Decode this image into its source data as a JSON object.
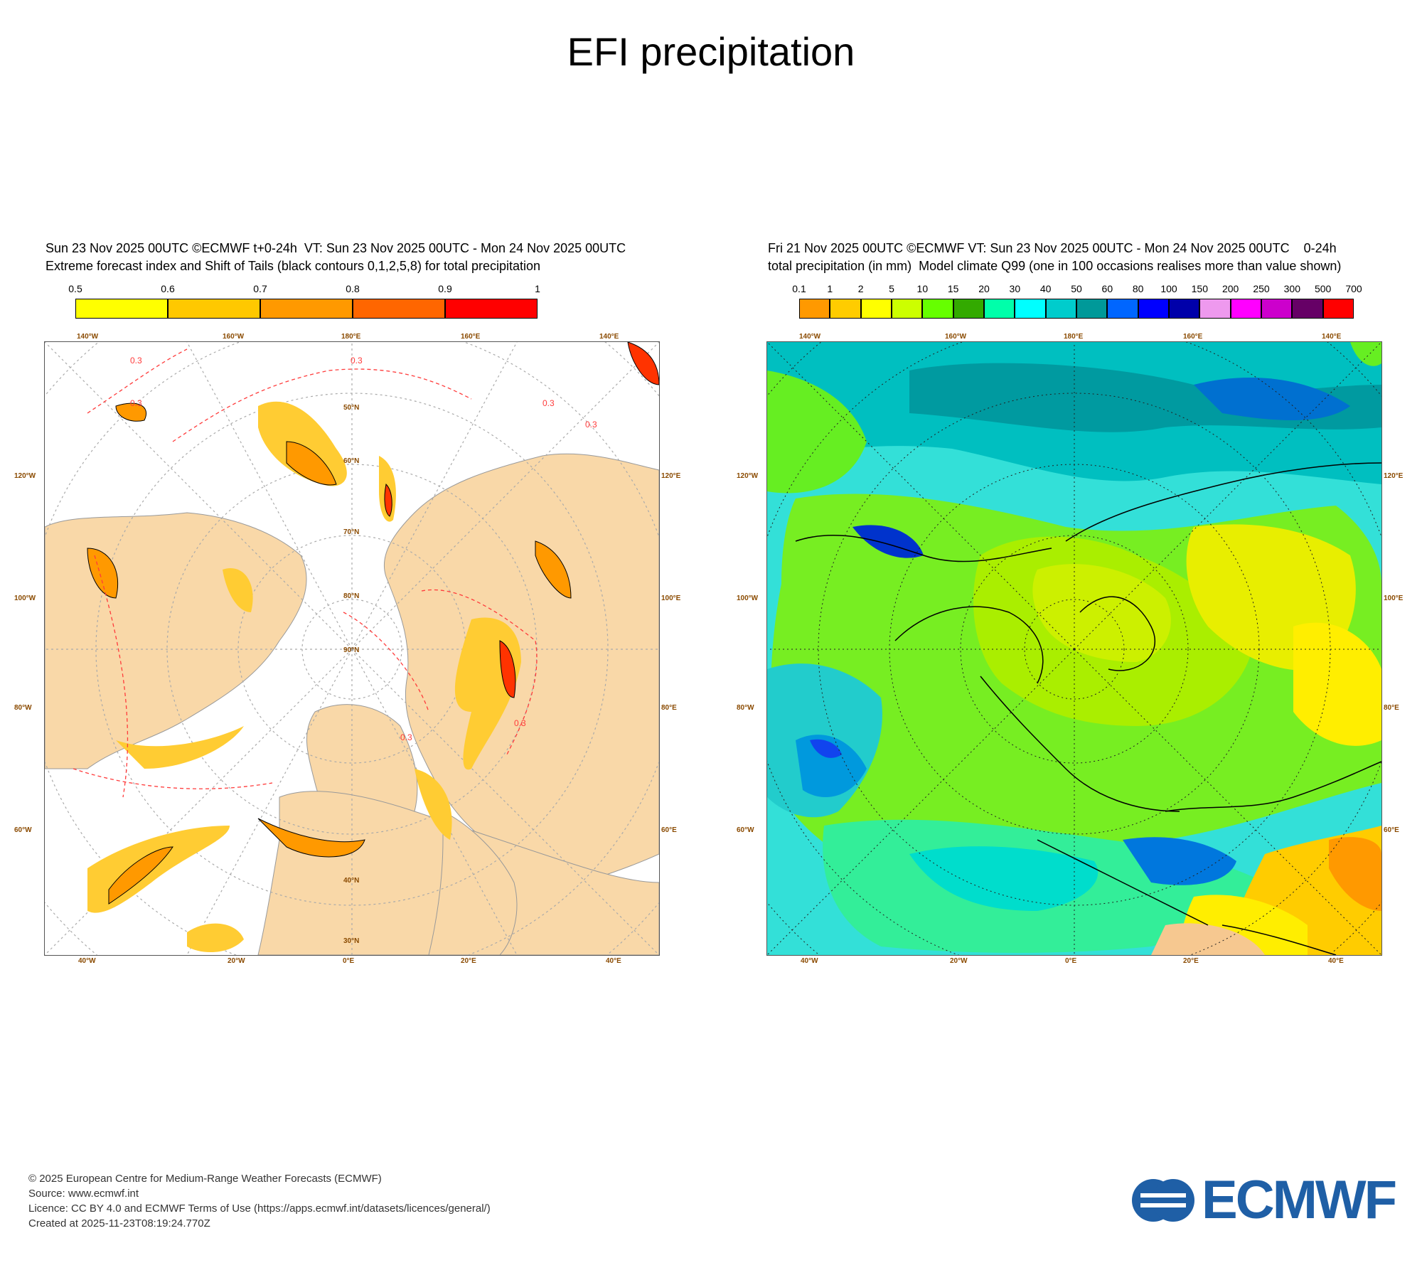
{
  "title": "EFI precipitation",
  "left_panel": {
    "header_line1": "Sun 23 Nov 2025 00UTC ©ECMWF t+0-24h  VT: Sun 23 Nov 2025 00UTC - Mon 24 Nov 2025 00UTC",
    "header_line2": "Extreme forecast index and Shift of Tails (black contours 0,1,2,5,8) for total precipitation",
    "colorbar": {
      "labels": [
        "0.5",
        "0.6",
        "0.7",
        "0.8",
        "0.9",
        "1"
      ],
      "colors": [
        "#ffff00",
        "#ffc800",
        "#ff9900",
        "#ff6600",
        "#ff0000"
      ]
    },
    "map": {
      "ocean_color": "#ffffff",
      "land_color": "#f9d8a8",
      "contour_label": "0.3",
      "lon_labels_top": [
        "140°W",
        "160°W",
        "180°E",
        "160°E",
        "140°E"
      ],
      "lon_labels_bottom": [
        "40°W",
        "20°W",
        "0°E",
        "20°E",
        "40°E"
      ],
      "lat_labels_left": [
        "120°W",
        "100°W",
        "80°W",
        "60°W"
      ],
      "lat_labels_right": [
        "120°E",
        "100°E",
        "80°E",
        "60°E"
      ],
      "inner_labels": [
        "30°N",
        "40°N",
        "50°N",
        "60°N",
        "70°N",
        "80°N",
        "90°N"
      ]
    }
  },
  "right_panel": {
    "header_line1": "Fri 21 Nov 2025 00UTC ©ECMWF VT: Sun 23 Nov 2025 00UTC - Mon 24 Nov 2025 00UTC    0-24h",
    "header_line2": "total precipitation (in mm)  Model climate Q99 (one in 100 occasions realises more than value shown)",
    "colorbar": {
      "labels": [
        "0.1",
        "1",
        "2",
        "5",
        "10",
        "15",
        "20",
        "30",
        "40",
        "50",
        "60",
        "80",
        "100",
        "150",
        "200",
        "250",
        "300",
        "500",
        "700"
      ],
      "colors": [
        "#ff9900",
        "#ffcc00",
        "#ffff00",
        "#ccff00",
        "#66ff00",
        "#33aa00",
        "#00ffaa",
        "#00ffff",
        "#00cccc",
        "#009999",
        "#0066ff",
        "#0000ff",
        "#0000aa",
        "#ee99ee",
        "#ff00ff",
        "#cc00cc",
        "#660066",
        "#ff0000"
      ]
    },
    "map": {
      "lon_labels_top": [
        "140°W",
        "160°W",
        "180°E",
        "160°E",
        "140°E"
      ],
      "lon_labels_bottom": [
        "40°W",
        "20°W",
        "0°E",
        "20°E",
        "40°E"
      ],
      "lat_labels_left": [
        "120°W",
        "100°W",
        "80°W",
        "60°W"
      ],
      "lat_labels_right": [
        "120°E",
        "100°E",
        "80°E",
        "60°E"
      ]
    }
  },
  "footer": {
    "line1": "© 2025 European Centre for Medium-Range Weather Forecasts (ECMWF)",
    "line2": "Source: www.ecmwf.int",
    "line3": "Licence: CC BY 4.0 and ECMWF Terms of Use (https://apps.ecmwf.int/datasets/licences/general/)",
    "line4": "Created at 2025-11-23T08:19:24.770Z"
  },
  "logo": {
    "text": "ECMWF",
    "color": "#1f5fa6"
  }
}
